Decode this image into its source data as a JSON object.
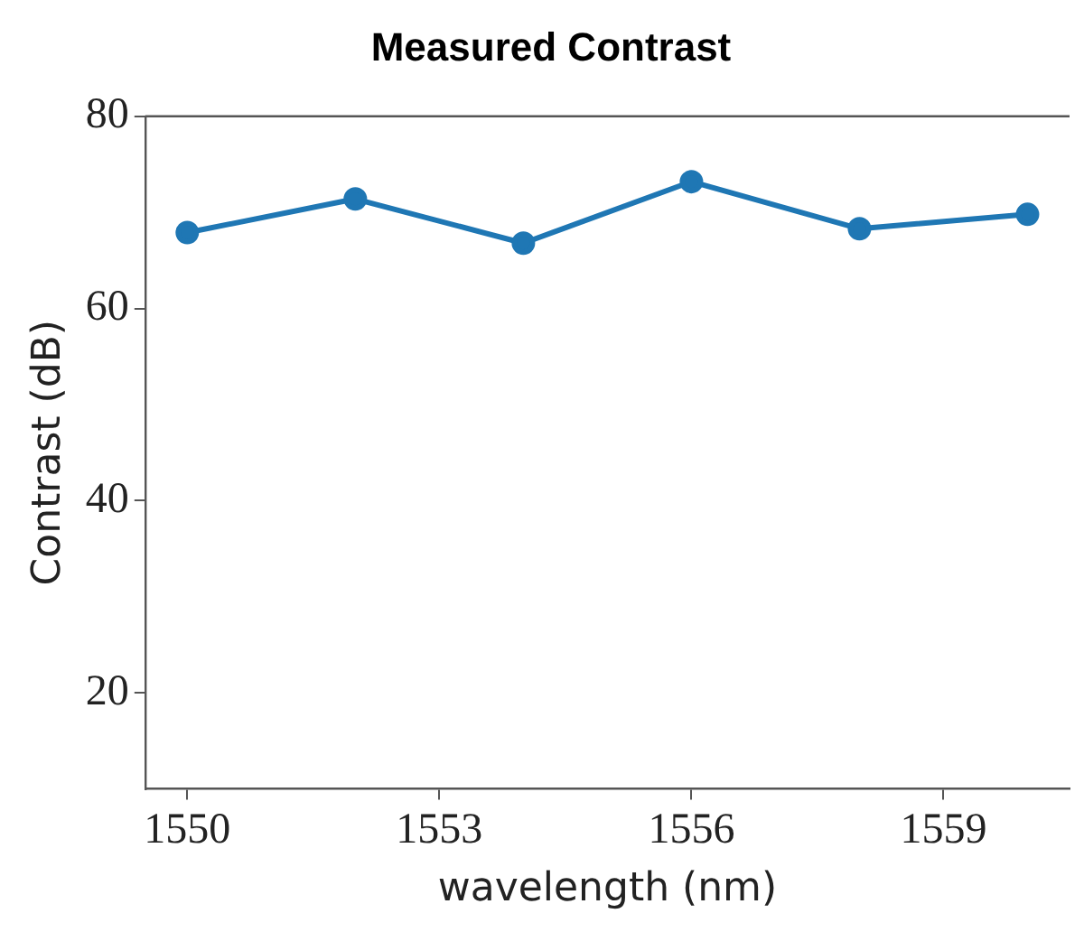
{
  "chart_data": {
    "type": "line",
    "title": "Measured Contrast",
    "xlabel": "wavelength (nm)",
    "ylabel": "Contrast (dB)",
    "x": [
      1550,
      1552,
      1554,
      1556,
      1558,
      1560
    ],
    "series": [
      {
        "color": "#1f77b4",
        "values": [
          67.9,
          71.4,
          66.8,
          73.2,
          68.3,
          69.8
        ]
      }
    ],
    "xlim": [
      1549.5,
      1560.5
    ],
    "xticks": [
      1550,
      1553,
      1556,
      1559
    ],
    "ylim": [
      10,
      80
    ],
    "yticks": [
      20,
      40,
      60,
      80
    ],
    "grid": false,
    "legend": false,
    "marker": "circle",
    "line_style": "solid"
  }
}
